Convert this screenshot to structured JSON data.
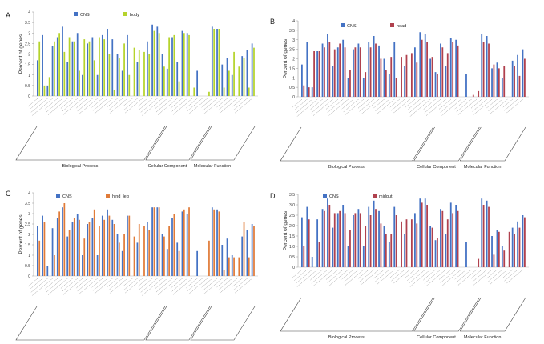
{
  "chart_data": [
    {
      "panel": "A",
      "type": "bar",
      "title": "",
      "ylabel": "Percent of genes",
      "ylim": [
        0,
        4
      ],
      "yticks": [
        "0",
        "0.5",
        "1",
        "1.5",
        "2",
        "2.5",
        "3",
        "3.5",
        "4"
      ],
      "groups": [
        "Biological Process",
        "Cellular Component",
        "Molecular Function"
      ],
      "series": [
        {
          "name": "CNS",
          "color": "#4472c4",
          "values": [
            1.7,
            2.9,
            0.5,
            2.4,
            2.8,
            3.3,
            1.6,
            2.6,
            3.0,
            1.0,
            2.5,
            2.8,
            1.0,
            2.9,
            3.2,
            2.7,
            2.0,
            1.2,
            2.9,
            0.0,
            1.6,
            0.0,
            2.6,
            3.4,
            3.3,
            2.0,
            1.3,
            2.8,
            1.6,
            3.1,
            3.0,
            0.0,
            1.2,
            0.0,
            0.0,
            3.3,
            3.2,
            1.5,
            1.8,
            1.0,
            0.0,
            1.9,
            2.2,
            2.5
          ]
        },
        {
          "name": "body",
          "color": "#b5d32c",
          "values": [
            2.6,
            0.5,
            0.9,
            2.6,
            3.0,
            2.1,
            2.8,
            2.6,
            1.2,
            2.7,
            2.6,
            1.7,
            2.8,
            2.7,
            2.0,
            0.3,
            1.8,
            2.5,
            1.0,
            2.3,
            2.2,
            2.1,
            2.0,
            3.1,
            3.0,
            1.4,
            2.8,
            2.9,
            0.7,
            3.0,
            2.9,
            0.4,
            0.0,
            0.0,
            0.2,
            3.2,
            3.2,
            0.4,
            1.2,
            2.1,
            1.4,
            1.8,
            0.4,
            2.3
          ]
        }
      ]
    },
    {
      "panel": "B",
      "type": "bar",
      "title": "",
      "ylabel": "Percent of genes",
      "ylim": [
        0,
        4
      ],
      "yticks": [
        "0",
        "0.5",
        "1",
        "1.5",
        "2",
        "2.5",
        "3",
        "3.5",
        "4"
      ],
      "groups": [
        "Biological Process",
        "Cellular Component",
        "Molecular Function"
      ],
      "series": [
        {
          "name": "CNS",
          "color": "#4472c4",
          "values": [
            1.7,
            2.9,
            0.5,
            2.4,
            2.8,
            3.3,
            1.6,
            2.6,
            3.0,
            1.0,
            2.5,
            2.8,
            1.0,
            2.9,
            3.2,
            2.7,
            2.0,
            1.2,
            2.9,
            0.0,
            1.6,
            0.0,
            2.6,
            3.4,
            3.3,
            2.0,
            1.3,
            2.8,
            1.6,
            3.1,
            3.0,
            0.0,
            1.2,
            0.0,
            0.0,
            3.3,
            3.2,
            1.5,
            1.8,
            1.0,
            0.0,
            1.9,
            2.2,
            2.5
          ]
        },
        {
          "name": "head",
          "color": "#b0414e",
          "values": [
            0.6,
            0.5,
            2.4,
            2.4,
            2.6,
            2.9,
            2.5,
            2.8,
            2.6,
            1.4,
            2.6,
            2.6,
            1.3,
            2.6,
            2.8,
            2.0,
            1.4,
            2.1,
            1.0,
            2.1,
            2.2,
            2.3,
            1.8,
            3.0,
            2.9,
            2.1,
            1.2,
            2.6,
            2.3,
            2.9,
            2.7,
            0.0,
            0.0,
            0.1,
            0.3,
            2.9,
            2.8,
            1.7,
            1.5,
            1.6,
            0.0,
            1.6,
            1.1,
            2.0
          ]
        }
      ]
    },
    {
      "panel": "C",
      "type": "bar",
      "title": "",
      "ylabel": "Percent of genes",
      "ylim": [
        0,
        4
      ],
      "yticks": [
        "0",
        "0.5",
        "1",
        "1.5",
        "2",
        "2.5",
        "3",
        "3.5",
        "4"
      ],
      "groups": [
        "Biological Process",
        "Cellular Component",
        "Molecular Function"
      ],
      "series": [
        {
          "name": "CNS",
          "color": "#4472c4",
          "values": [
            2.4,
            2.9,
            0.5,
            2.3,
            2.8,
            3.3,
            1.9,
            2.6,
            3.0,
            1.0,
            2.5,
            2.8,
            1.0,
            2.9,
            3.2,
            2.7,
            2.0,
            1.2,
            2.9,
            0.0,
            1.6,
            0.0,
            2.6,
            3.3,
            3.3,
            2.0,
            1.3,
            2.8,
            1.6,
            3.1,
            3.0,
            0.0,
            1.2,
            0.0,
            0.0,
            3.3,
            3.2,
            1.5,
            1.8,
            1.0,
            0.0,
            1.9,
            2.2,
            2.5
          ]
        },
        {
          "name": "hind_leg",
          "color": "#e07b39",
          "values": [
            1.7,
            2.6,
            0.0,
            1.0,
            3.1,
            3.5,
            2.2,
            2.8,
            2.7,
            1.8,
            2.6,
            3.2,
            2.4,
            2.7,
            2.9,
            2.5,
            1.6,
            2.0,
            2.9,
            1.9,
            2.5,
            2.4,
            2.2,
            3.3,
            3.3,
            1.9,
            2.4,
            3.0,
            1.2,
            3.2,
            3.3,
            0.0,
            0.0,
            0.0,
            1.7,
            3.2,
            3.1,
            0.3,
            0.9,
            0.9,
            0.9,
            2.6,
            0.9,
            2.4
          ]
        }
      ]
    },
    {
      "panel": "D",
      "type": "bar",
      "title": "",
      "ylabel": "Percent of genes",
      "ylim": [
        0,
        3.5
      ],
      "yticks": [
        "0",
        "0.5",
        "1.0",
        "1.5",
        "2.0",
        "2.5",
        "3.0",
        "3.5"
      ],
      "groups": [
        "Biological Process",
        "Cellular Component",
        "Molecular Function"
      ],
      "series": [
        {
          "name": "CNS",
          "color": "#4472c4",
          "values": [
            2.4,
            2.9,
            0.5,
            2.3,
            2.8,
            3.3,
            1.9,
            2.6,
            3.0,
            1.0,
            2.5,
            2.8,
            1.0,
            2.9,
            3.2,
            2.7,
            2.0,
            1.2,
            2.9,
            0.0,
            1.6,
            0.0,
            2.6,
            3.3,
            3.3,
            2.0,
            1.3,
            2.8,
            1.6,
            3.1,
            3.0,
            0.0,
            1.2,
            0.0,
            0.0,
            3.3,
            3.2,
            1.5,
            1.8,
            1.0,
            0.0,
            1.9,
            2.2,
            2.5
          ]
        },
        {
          "name": "midgut",
          "color": "#b0414e",
          "values": [
            1.0,
            2.3,
            0.0,
            1.2,
            2.7,
            3.0,
            2.6,
            2.7,
            2.6,
            1.8,
            2.6,
            2.6,
            2.0,
            2.5,
            2.8,
            2.1,
            1.6,
            1.6,
            2.5,
            2.2,
            2.3,
            2.3,
            2.1,
            3.1,
            3.0,
            1.9,
            1.4,
            2.7,
            2.3,
            2.6,
            2.7,
            0.0,
            0.0,
            0.0,
            0.4,
            3.0,
            2.9,
            0.6,
            1.7,
            0.8,
            1.7,
            1.6,
            1.9,
            2.4
          ]
        }
      ]
    }
  ]
}
